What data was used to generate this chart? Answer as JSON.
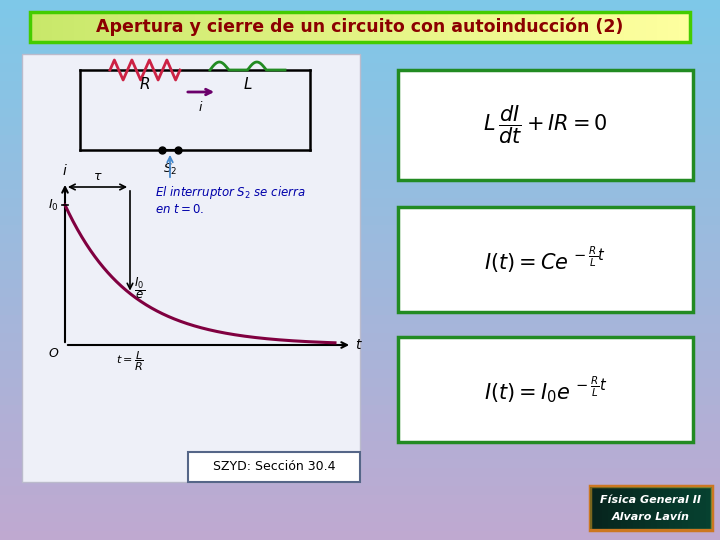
{
  "title": "Apertura y cierre de un circuito con autoinducción (2)",
  "title_color": "#8B0000",
  "title_bg_left": "#C8E86A",
  "title_bg_right": "#FFFFA0",
  "title_border": "#44CC00",
  "bg_top": "#7EC8E8",
  "bg_bottom": "#C0A8D0",
  "panel_bg": "#EEF0F8",
  "panel_edge": "#BBBBCC",
  "eq_border": "#228B22",
  "eq_fill": "#FFFFFF",
  "szyd_text": "SZYD: Sección 30.4",
  "szyd_border": "#556688",
  "annotation_color": "#0000AA",
  "resistor_color": "#CC2244",
  "inductor_color": "#228B22",
  "arrow_i_color": "#6B006B",
  "curve_color": "#800040",
  "footer_bg": "#0A0A20",
  "footer_border": "#CC7722",
  "footer_text1": "Física General II",
  "footer_text2": "Alvaro Lavín",
  "eq1_latex": "$L\\,\\dfrac{dI}{dt}+IR=0$",
  "eq2_latex": "$I(t)= Ce^{\\,-\\frac{R}{L}t}$",
  "eq3_latex": "$I(t)= I_0 e^{\\,-\\frac{R}{L}t}$"
}
